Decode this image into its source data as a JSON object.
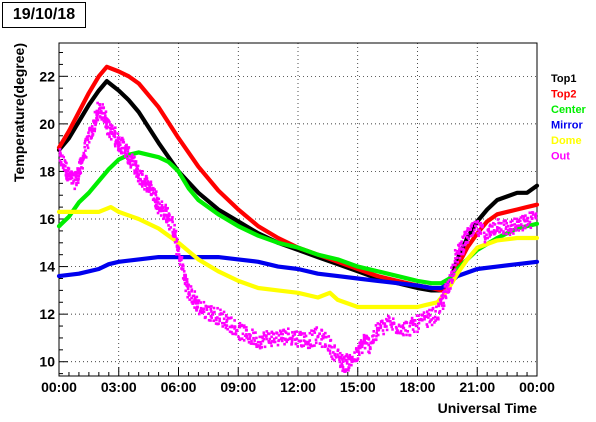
{
  "chart_data": {
    "type": "scatter",
    "title": "19/10/18",
    "xlabel": "Universal Time",
    "ylabel": "Temperature(degree)",
    "xlim": [
      0,
      24
    ],
    "ylim": [
      9.4,
      23.4
    ],
    "grid": true,
    "legend_position": "right",
    "x_ticks": [
      0,
      3,
      6,
      9,
      12,
      15,
      18,
      21,
      24
    ],
    "x_tick_labels": [
      "00:00",
      "03:00",
      "06:00",
      "09:00",
      "12:00",
      "15:00",
      "18:00",
      "21:00",
      "00:00"
    ],
    "y_ticks": [
      10,
      12,
      14,
      16,
      18,
      20,
      22
    ],
    "y_tick_labels": [
      "10",
      "12",
      "14",
      "16",
      "18",
      "20",
      "22"
    ],
    "series": [
      {
        "name": "Top1",
        "color": "#000000",
        "marker_size": 2.4,
        "x": [
          0,
          0.5,
          1,
          1.5,
          2,
          2.4,
          3,
          3.5,
          4,
          5,
          6,
          7,
          8,
          9,
          10,
          11,
          12,
          13,
          14,
          15,
          16,
          17,
          18,
          18.7,
          19.2,
          19.6,
          20,
          20.5,
          21,
          21.5,
          22,
          23,
          23.5,
          24
        ],
        "y": [
          18.9,
          19.4,
          20.1,
          20.8,
          21.4,
          21.8,
          21.4,
          21.0,
          20.5,
          19.2,
          18.0,
          17.1,
          16.4,
          15.9,
          15.4,
          15.0,
          14.7,
          14.4,
          14.1,
          13.8,
          13.5,
          13.3,
          13.1,
          13.0,
          13.0,
          13.3,
          14.3,
          15.2,
          15.9,
          16.4,
          16.8,
          17.1,
          17.1,
          17.4
        ]
      },
      {
        "name": "Top2",
        "color": "#ff0000",
        "marker_size": 2.4,
        "x": [
          0,
          0.5,
          1,
          1.5,
          2,
          2.4,
          3,
          3.5,
          4,
          5,
          6,
          7,
          8,
          9,
          10,
          11,
          12,
          13,
          14,
          15,
          16,
          17,
          18,
          18.7,
          19.2,
          19.6,
          20,
          20.5,
          21,
          21.5,
          22,
          23,
          23.5,
          24
        ],
        "y": [
          19.0,
          19.7,
          20.5,
          21.3,
          22.0,
          22.4,
          22.2,
          22.0,
          21.7,
          20.7,
          19.4,
          18.2,
          17.2,
          16.4,
          15.7,
          15.2,
          14.8,
          14.5,
          14.2,
          13.9,
          13.6,
          13.4,
          13.2,
          13.1,
          13.0,
          13.2,
          14.0,
          14.8,
          15.4,
          15.9,
          16.2,
          16.4,
          16.5,
          16.6
        ]
      },
      {
        "name": "Center",
        "color": "#00ee00",
        "marker_size": 2.4,
        "x": [
          0,
          0.5,
          1,
          1.5,
          2,
          2.5,
          3,
          3.5,
          4,
          4.5,
          5,
          5.5,
          6,
          6.5,
          7,
          8,
          9,
          10,
          11,
          12,
          13,
          14,
          15,
          16,
          17,
          18,
          18.7,
          19.2,
          19.6,
          20,
          20.5,
          21,
          22,
          23,
          24
        ],
        "y": [
          15.7,
          16.1,
          16.7,
          17.1,
          17.6,
          18.1,
          18.5,
          18.7,
          18.8,
          18.7,
          18.6,
          18.4,
          18.0,
          17.3,
          16.8,
          16.2,
          15.7,
          15.3,
          15.0,
          14.8,
          14.5,
          14.3,
          14.0,
          13.8,
          13.6,
          13.4,
          13.3,
          13.3,
          13.5,
          13.9,
          14.3,
          14.7,
          15.2,
          15.6,
          15.8
        ]
      },
      {
        "name": "Mirror",
        "color": "#0000ee",
        "marker_size": 2.4,
        "x": [
          0,
          1,
          2,
          2.5,
          3,
          4,
          5,
          6,
          7,
          8,
          9,
          10,
          11,
          12,
          13,
          14,
          15,
          16,
          17,
          18,
          18.7,
          19.2,
          19.6,
          20,
          21,
          22,
          23,
          24
        ],
        "y": [
          13.6,
          13.7,
          13.9,
          14.1,
          14.2,
          14.3,
          14.4,
          14.4,
          14.4,
          14.4,
          14.3,
          14.2,
          14.0,
          13.9,
          13.7,
          13.6,
          13.5,
          13.4,
          13.3,
          13.2,
          13.1,
          13.1,
          13.3,
          13.6,
          13.9,
          14.0,
          14.1,
          14.2
        ]
      },
      {
        "name": "Dome",
        "color": "#ffff00",
        "marker_size": 2.4,
        "x": [
          0,
          1,
          2,
          2.6,
          3,
          4,
          5,
          6,
          7,
          8,
          9,
          10,
          11,
          12,
          13,
          13.6,
          14,
          15,
          16,
          17,
          18,
          18.5,
          19,
          19.5,
          20,
          20.5,
          21,
          22,
          23,
          24
        ],
        "y": [
          16.3,
          16.3,
          16.3,
          16.5,
          16.3,
          16.0,
          15.6,
          15.0,
          14.3,
          13.8,
          13.4,
          13.1,
          13.0,
          12.9,
          12.7,
          12.9,
          12.6,
          12.3,
          12.3,
          12.3,
          12.3,
          12.4,
          12.5,
          13.0,
          13.7,
          14.3,
          14.8,
          15.1,
          15.2,
          15.2
        ]
      },
      {
        "name": "Out",
        "color": "#ff00ff",
        "marker_size": 2.6,
        "scatter_jitter": 0.35,
        "x": [
          0,
          0.3,
          0.5,
          0.8,
          1.0,
          1.2,
          1.5,
          1.8,
          2.0,
          2.3,
          2.5,
          2.8,
          3.0,
          3.3,
          3.5,
          3.8,
          4.0,
          4.3,
          4.5,
          4.8,
          5.0,
          5.3,
          5.5,
          5.8,
          6.0,
          6.3,
          6.5,
          6.8,
          7.0,
          7.5,
          8.0,
          8.5,
          9.0,
          9.5,
          10.0,
          10.5,
          11.0,
          11.5,
          12.0,
          12.5,
          13.0,
          13.5,
          14.0,
          14.3,
          14.6,
          15.0,
          15.3,
          15.6,
          16.0,
          16.5,
          17.0,
          17.5,
          18.0,
          18.5,
          19.0,
          19.3,
          19.6,
          19.9,
          20.2,
          20.5,
          21.0,
          21.5,
          22.0,
          22.5,
          23.0,
          23.5,
          24.0
        ],
        "y": [
          18.6,
          18.2,
          17.8,
          17.6,
          17.9,
          18.6,
          19.4,
          20.0,
          20.6,
          20.4,
          19.8,
          19.5,
          19.2,
          19.0,
          18.6,
          18.2,
          17.8,
          17.6,
          17.4,
          17.0,
          16.6,
          16.3,
          16.1,
          15.4,
          14.6,
          13.6,
          13.0,
          12.6,
          12.3,
          12.1,
          11.9,
          11.7,
          11.3,
          11.1,
          10.9,
          11.0,
          11.0,
          11.1,
          11.0,
          10.9,
          11.1,
          10.8,
          10.2,
          9.9,
          10.0,
          10.3,
          10.9,
          10.7,
          11.3,
          11.6,
          11.5,
          11.4,
          11.6,
          11.8,
          12.0,
          12.6,
          13.3,
          14.3,
          14.8,
          15.3,
          15.6,
          15.3,
          15.8,
          15.6,
          15.7,
          15.9,
          16.1
        ]
      }
    ]
  }
}
